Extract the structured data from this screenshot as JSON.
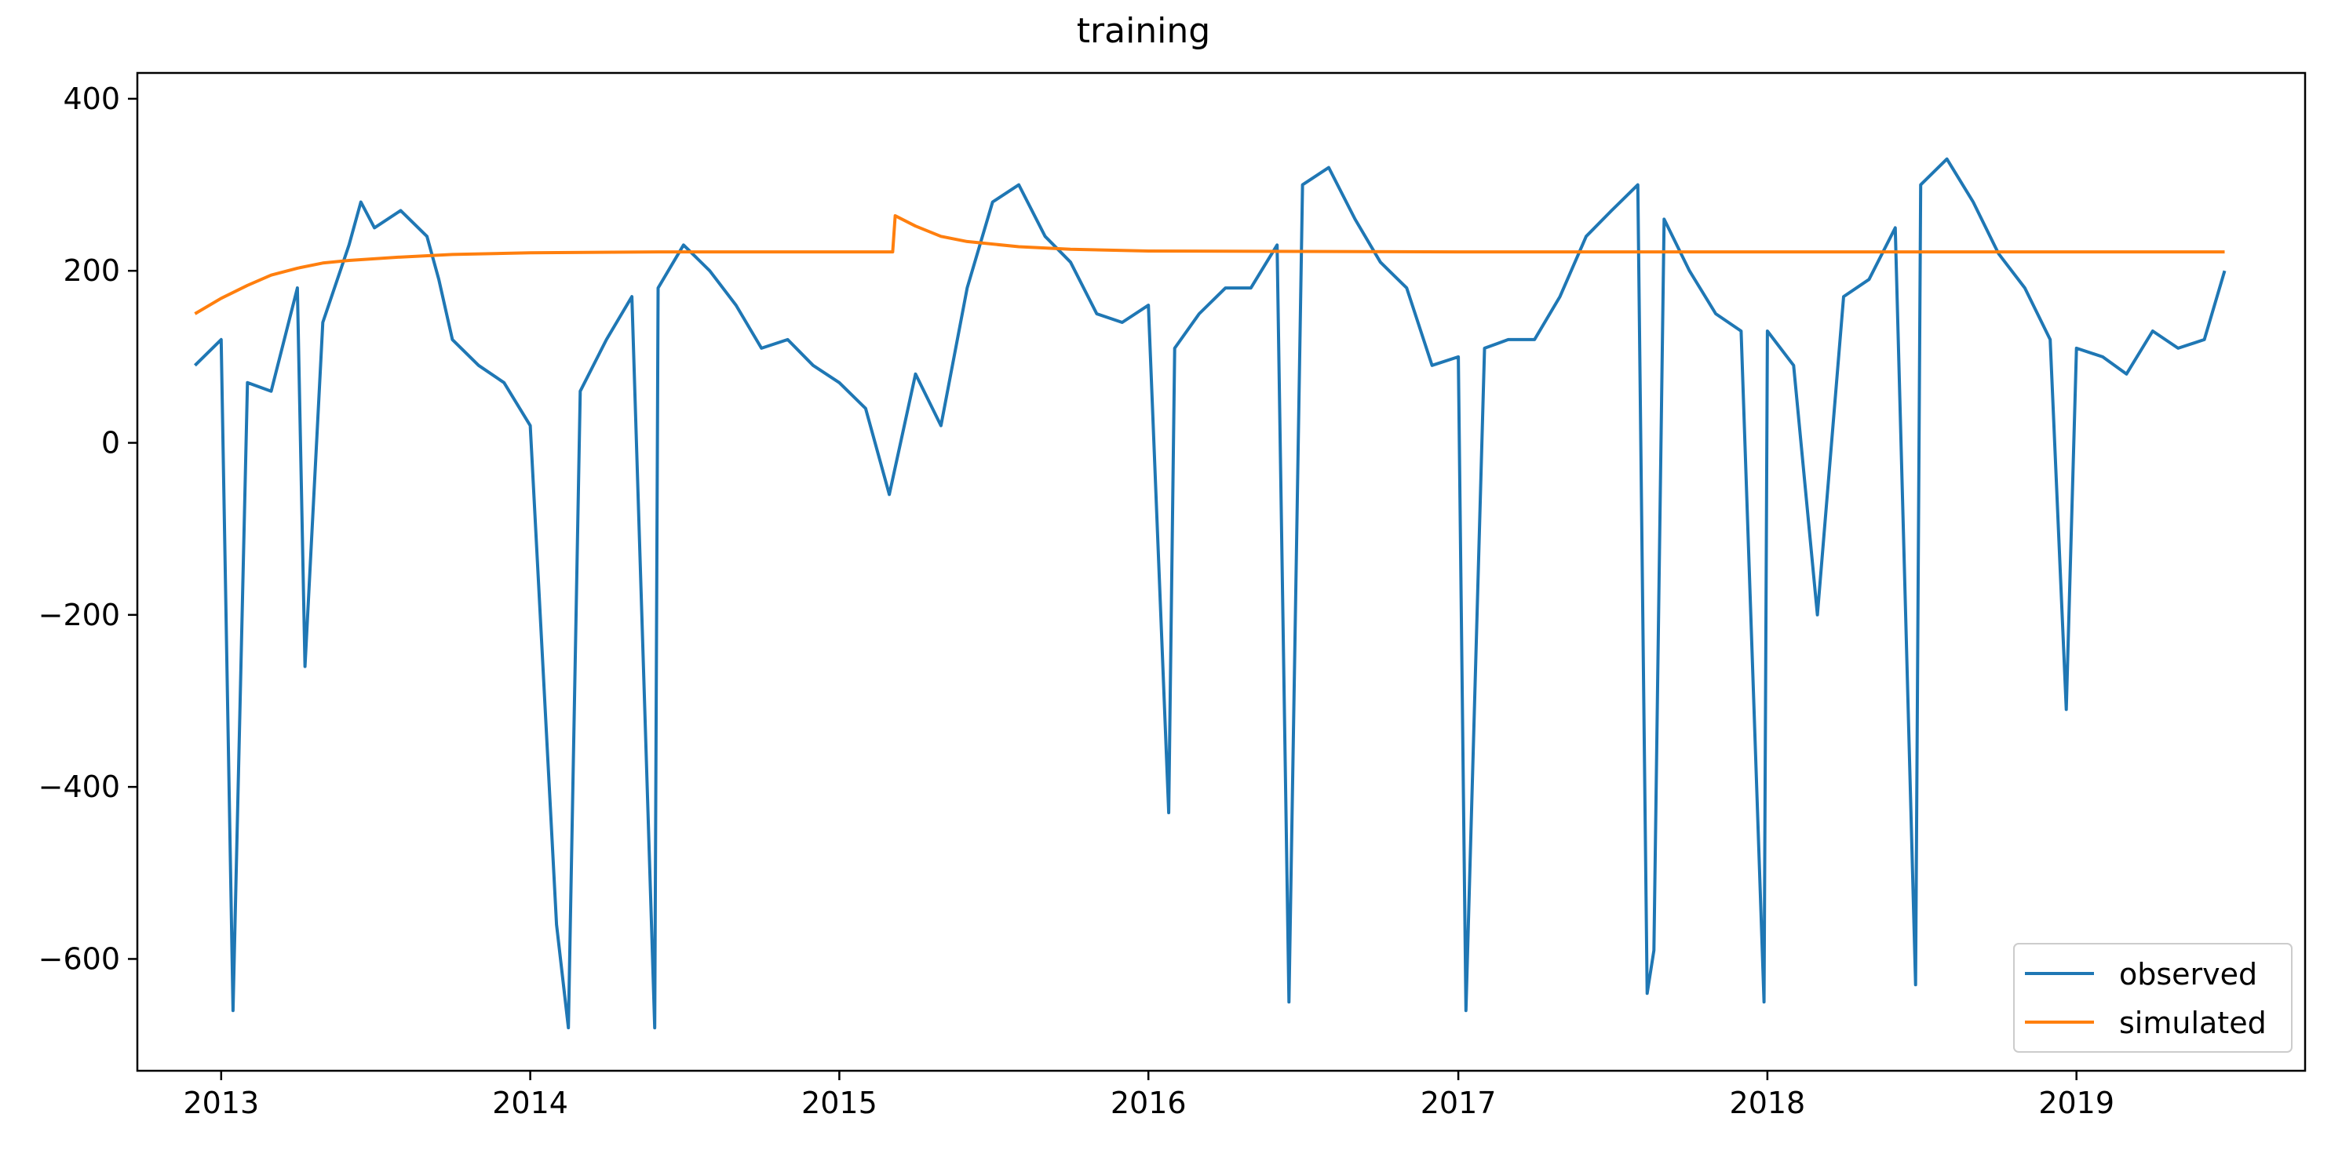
{
  "chart_data": {
    "type": "line",
    "title": "training",
    "xlabel": "",
    "ylabel": "",
    "x_range": [
      "2012-09-24",
      "2019-09-28"
    ],
    "x_ticks": [
      "2013",
      "2014",
      "2015",
      "2016",
      "2017",
      "2018",
      "2019"
    ],
    "ylim": [
      -730,
      430
    ],
    "y_ticks": [
      400,
      200,
      0,
      -200,
      -400,
      -600
    ],
    "y_tick_labels": [
      "400",
      "200",
      "0",
      "−200",
      "−400",
      "−600"
    ],
    "grid": false,
    "legend_position": "lower-right",
    "series": [
      {
        "name": "observed",
        "color": "#1f77b4",
        "x": [
          "2012-12-01",
          "2013-01-01",
          "2013-01-15",
          "2013-02-01",
          "2013-03-01",
          "2013-04-01",
          "2013-04-10",
          "2013-05-01",
          "2013-06-01",
          "2013-06-15",
          "2013-07-01",
          "2013-08-01",
          "2013-09-01",
          "2013-09-15",
          "2013-10-01",
          "2013-11-01",
          "2013-12-01",
          "2014-01-01",
          "2014-02-01",
          "2014-02-15",
          "2014-03-01",
          "2014-04-01",
          "2014-05-01",
          "2014-05-28",
          "2014-06-01",
          "2014-07-01",
          "2014-08-01",
          "2014-09-01",
          "2014-10-01",
          "2014-11-01",
          "2014-12-01",
          "2015-01-01",
          "2015-02-01",
          "2015-03-01",
          "2015-04-01",
          "2015-05-01",
          "2015-06-01",
          "2015-07-01",
          "2015-08-01",
          "2015-09-01",
          "2015-10-01",
          "2015-11-01",
          "2015-12-01",
          "2016-01-01",
          "2016-01-25",
          "2016-02-01",
          "2016-03-01",
          "2016-04-01",
          "2016-05-01",
          "2016-06-01",
          "2016-06-15",
          "2016-07-01",
          "2016-08-01",
          "2016-09-01",
          "2016-10-01",
          "2016-11-01",
          "2016-12-01",
          "2017-01-01",
          "2017-01-10",
          "2017-02-01",
          "2017-03-01",
          "2017-04-01",
          "2017-05-01",
          "2017-06-01",
          "2017-07-01",
          "2017-08-01",
          "2017-08-12",
          "2017-08-20",
          "2017-09-01",
          "2017-10-01",
          "2017-11-01",
          "2017-12-01",
          "2017-12-28",
          "2018-01-01",
          "2018-02-01",
          "2018-03-01",
          "2018-04-01",
          "2018-05-01",
          "2018-06-01",
          "2018-06-25",
          "2018-07-01",
          "2018-08-01",
          "2018-09-01",
          "2018-10-01",
          "2018-11-01",
          "2018-12-01",
          "2018-12-20",
          "2019-01-01",
          "2019-02-01",
          "2019-03-01",
          "2019-04-01",
          "2019-05-01",
          "2019-06-01",
          "2019-06-25"
        ],
        "y": [
          90,
          120,
          -660,
          70,
          60,
          180,
          -260,
          140,
          230,
          280,
          250,
          270,
          240,
          190,
          120,
          90,
          70,
          20,
          -560,
          -680,
          60,
          120,
          170,
          -680,
          180,
          230,
          200,
          160,
          110,
          120,
          90,
          70,
          40,
          -60,
          80,
          20,
          180,
          280,
          300,
          240,
          210,
          150,
          140,
          160,
          -430,
          110,
          150,
          180,
          180,
          230,
          -650,
          300,
          320,
          260,
          210,
          180,
          90,
          100,
          -660,
          110,
          120,
          120,
          170,
          240,
          270,
          300,
          -640,
          -590,
          260,
          200,
          150,
          130,
          -650,
          130,
          90,
          -200,
          170,
          190,
          250,
          -630,
          300,
          330,
          280,
          220,
          180,
          120,
          -310,
          110,
          100,
          80,
          130,
          110,
          120,
          200
        ]
      },
      {
        "name": "simulated",
        "color": "#ff7f0e",
        "x": [
          "2012-12-01",
          "2013-01-01",
          "2013-02-01",
          "2013-03-01",
          "2013-04-01",
          "2013-05-01",
          "2013-06-01",
          "2013-08-01",
          "2013-10-01",
          "2014-01-01",
          "2014-06-01",
          "2015-01-01",
          "2015-03-05",
          "2015-03-08",
          "2015-04-01",
          "2015-05-01",
          "2015-06-01",
          "2015-08-01",
          "2015-10-01",
          "2016-01-01",
          "2017-01-01",
          "2018-01-01",
          "2019-01-01",
          "2019-06-25"
        ],
        "y": [
          150,
          168,
          183,
          195,
          203,
          209,
          212,
          216,
          219,
          221,
          222,
          222,
          222,
          264,
          252,
          240,
          234,
          228,
          225,
          223,
          222,
          222,
          222,
          222
        ]
      }
    ]
  }
}
